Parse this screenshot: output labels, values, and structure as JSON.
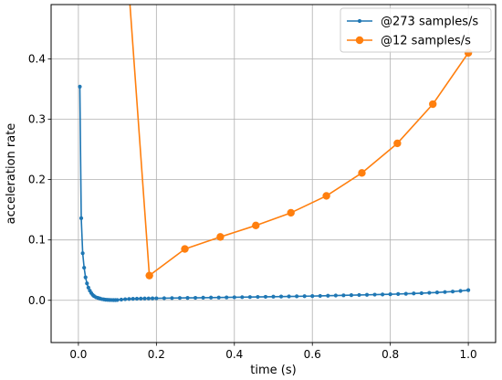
{
  "chart_data": {
    "type": "line",
    "xlabel": "time (s)",
    "ylabel": "acceleration rate",
    "xlim": [
      -0.07,
      1.07
    ],
    "ylim": [
      -0.07,
      0.49
    ],
    "x_ticks": [
      0.0,
      0.2,
      0.4,
      0.6,
      0.8,
      1.0
    ],
    "x_tick_labels": [
      "0.0",
      "0.2",
      "0.4",
      "0.6",
      "0.8",
      "1.0"
    ],
    "y_ticks": [
      0.0,
      0.1,
      0.2,
      0.3,
      0.4
    ],
    "y_tick_labels": [
      "0.0",
      "0.1",
      "0.2",
      "0.3",
      "0.4"
    ],
    "grid": true,
    "legend_position": "top-right",
    "series": [
      {
        "name": "@273 samples/s",
        "color": "#1f77b4",
        "marker": "small-dot",
        "x": [
          0.0037,
          0.0073,
          0.011,
          0.0147,
          0.0183,
          0.022,
          0.0256,
          0.0293,
          0.033,
          0.0366,
          0.04,
          0.045,
          0.05,
          0.055,
          0.06,
          0.065,
          0.07,
          0.075,
          0.08,
          0.085,
          0.09,
          0.095,
          0.1,
          0.11,
          0.12,
          0.13,
          0.14,
          0.15,
          0.16,
          0.17,
          0.18,
          0.19,
          0.2,
          0.22,
          0.24,
          0.26,
          0.28,
          0.3,
          0.32,
          0.34,
          0.36,
          0.38,
          0.4,
          0.42,
          0.44,
          0.46,
          0.48,
          0.5,
          0.52,
          0.54,
          0.56,
          0.58,
          0.6,
          0.62,
          0.64,
          0.66,
          0.68,
          0.7,
          0.72,
          0.74,
          0.76,
          0.78,
          0.8,
          0.82,
          0.84,
          0.86,
          0.88,
          0.9,
          0.92,
          0.94,
          0.96,
          0.98,
          1.0
        ],
        "y": [
          0.354,
          0.136,
          0.078,
          0.054,
          0.038,
          0.028,
          0.021,
          0.016,
          0.012,
          0.009,
          0.007,
          0.005,
          0.004,
          0.003,
          0.002,
          0.0015,
          0.001,
          0.0008,
          0.0006,
          0.0005,
          0.0004,
          0.0004,
          0.0005,
          0.0012,
          0.0018,
          0.0022,
          0.0025,
          0.0027,
          0.0029,
          0.003,
          0.0031,
          0.0032,
          0.0033,
          0.0035,
          0.0037,
          0.0039,
          0.004,
          0.0041,
          0.0043,
          0.0045,
          0.0046,
          0.0048,
          0.005,
          0.0052,
          0.0054,
          0.0056,
          0.0058,
          0.006,
          0.0062,
          0.0064,
          0.0066,
          0.0068,
          0.007,
          0.0073,
          0.0076,
          0.0079,
          0.0082,
          0.0085,
          0.0088,
          0.0091,
          0.0094,
          0.0097,
          0.01,
          0.0104,
          0.0108,
          0.0113,
          0.0118,
          0.0124,
          0.013,
          0.0137,
          0.0145,
          0.0155,
          0.0168
        ]
      },
      {
        "name": "@12 samples/s",
        "color": "#ff7f0e",
        "marker": "large-dot",
        "leading_segment_from": [
          0.13,
          0.51
        ],
        "x": [
          0.182,
          0.273,
          0.364,
          0.455,
          0.545,
          0.636,
          0.727,
          0.818,
          0.909,
          1.0
        ],
        "y": [
          0.041,
          0.085,
          0.105,
          0.124,
          0.145,
          0.173,
          0.211,
          0.26,
          0.325,
          0.41
        ]
      }
    ]
  }
}
